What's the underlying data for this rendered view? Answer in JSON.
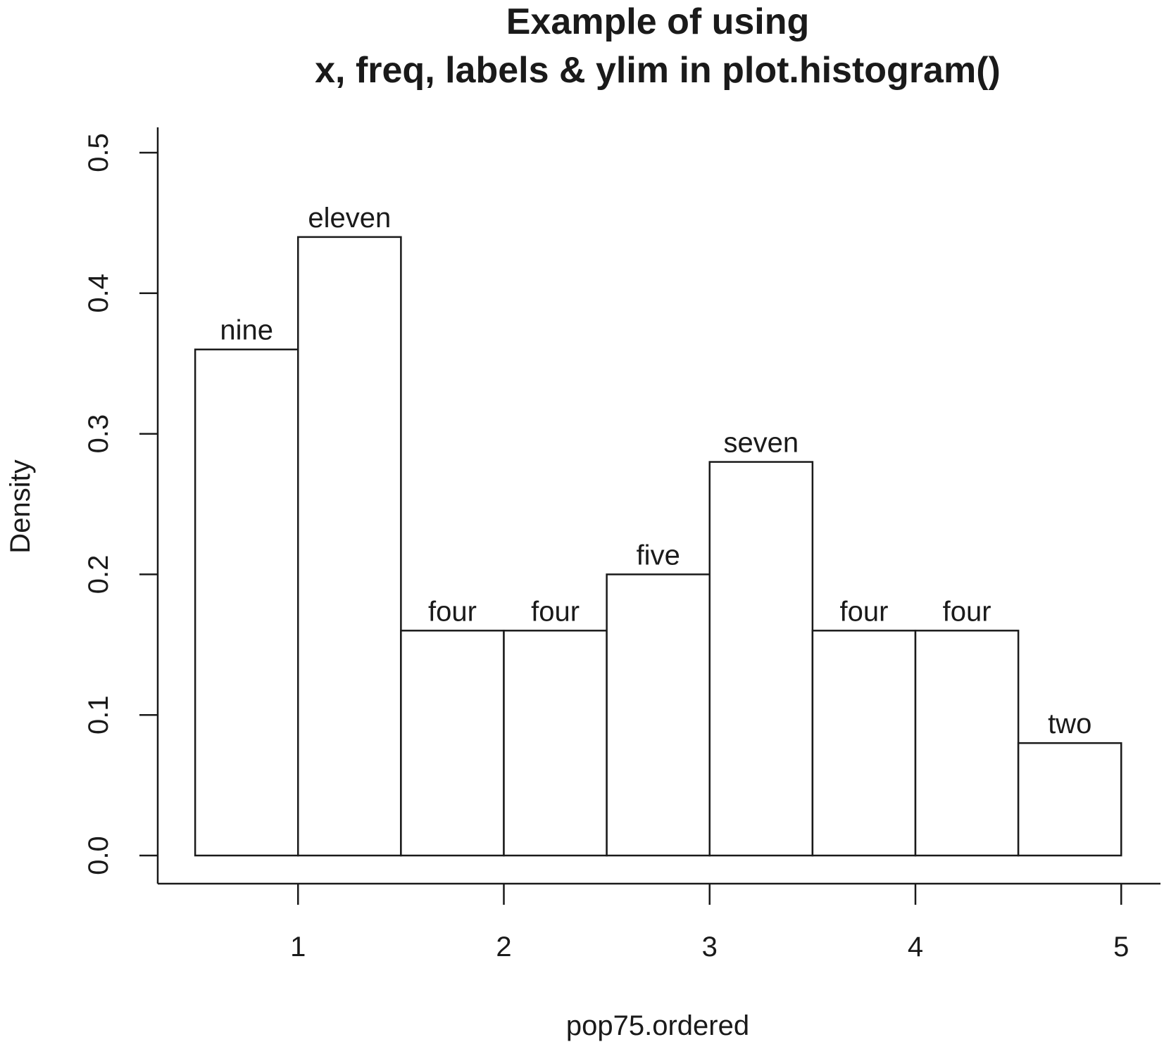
{
  "chart_data": {
    "type": "bar",
    "title": [
      "Example of using",
      "x, freq, labels & ylim in plot.histogram()"
    ],
    "xlabel": "pop75.ordered",
    "ylabel": "Density",
    "xlim": [
      0.5,
      5.0
    ],
    "ylim": [
      0,
      0.5
    ],
    "x_ticks": [
      1,
      2,
      3,
      4,
      5
    ],
    "x_tick_labels": [
      "1",
      "2",
      "3",
      "4",
      "5"
    ],
    "y_ticks": [
      0.0,
      0.1,
      0.2,
      0.3,
      0.4,
      0.5
    ],
    "y_tick_labels": [
      "0.0",
      "0.1",
      "0.2",
      "0.3",
      "0.4",
      "0.5"
    ],
    "bins": [
      {
        "x0": 0.5,
        "x1": 1.0,
        "density": 0.36,
        "label": "nine"
      },
      {
        "x0": 1.0,
        "x1": 1.5,
        "density": 0.44,
        "label": "eleven"
      },
      {
        "x0": 1.5,
        "x1": 2.0,
        "density": 0.16,
        "label": "four"
      },
      {
        "x0": 2.0,
        "x1": 2.5,
        "density": 0.16,
        "label": "four"
      },
      {
        "x0": 2.5,
        "x1": 3.0,
        "density": 0.2,
        "label": "five"
      },
      {
        "x0": 3.0,
        "x1": 3.5,
        "density": 0.28,
        "label": "seven"
      },
      {
        "x0": 3.5,
        "x1": 4.0,
        "density": 0.16,
        "label": "four"
      },
      {
        "x0": 4.0,
        "x1": 4.5,
        "density": 0.16,
        "label": "four"
      },
      {
        "x0": 4.5,
        "x1": 5.0,
        "density": 0.08,
        "label": "two"
      }
    ],
    "bar_fill": "#ffffff",
    "bar_stroke": "#1a1a1a",
    "grid": false,
    "legend": "none"
  }
}
